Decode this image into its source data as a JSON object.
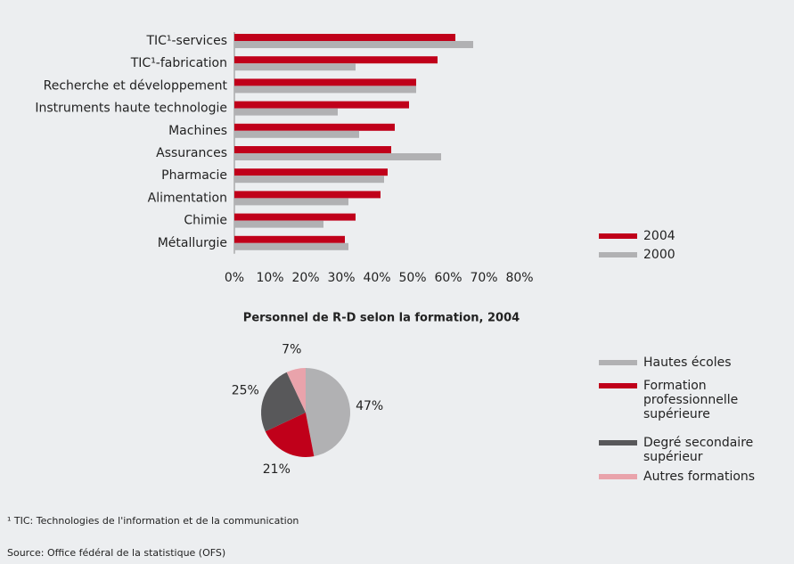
{
  "chart_data": [
    {
      "type": "bar",
      "orientation": "horizontal",
      "categories": [
        "TIC¹-services",
        "TIC¹-fabrication",
        "Recherche et développement",
        "Instruments haute technologie",
        "Machines",
        "Assurances",
        "Pharmacie",
        "Alimentation",
        "Chimie",
        "Métallurgie"
      ],
      "series": [
        {
          "name": "2004",
          "color": "#c0001a",
          "values": [
            62,
            57,
            51,
            49,
            45,
            44,
            43,
            41,
            34,
            31
          ]
        },
        {
          "name": "2000",
          "color": "#b1b1b3",
          "values": [
            67,
            34,
            51,
            29,
            35,
            58,
            42,
            32,
            25,
            32
          ]
        }
      ],
      "xlim": [
        0,
        80
      ],
      "xticks": [
        {
          "value": 0,
          "label": "0%"
        },
        {
          "value": 10,
          "label": "10%"
        },
        {
          "value": 20,
          "label": "20%"
        },
        {
          "value": 30,
          "label": "30%"
        },
        {
          "value": 40,
          "label": "40%"
        },
        {
          "value": 50,
          "label": "50%"
        },
        {
          "value": 60,
          "label": "60%"
        },
        {
          "value": 70,
          "label": "70%"
        },
        {
          "value": 80,
          "label": "80%"
        }
      ],
      "legend": "bottom-right"
    },
    {
      "type": "pie",
      "title": "Personnel de R-D selon la formation, 2004",
      "categories": [
        "Hautes écoles",
        "Formation professionnelle supérieure",
        "Degré secondaire supérieur",
        "Autres formations"
      ],
      "colors": [
        "#b1b1b3",
        "#c0001a",
        "#58585a",
        "#e9a3ab"
      ],
      "values": [
        47,
        21,
        25,
        7
      ],
      "value_labels": [
        "47%",
        "21%",
        "25%",
        "7%"
      ],
      "legend": "right"
    },
    {
      "type": "text",
      "footnote": "¹ TIC: Technologies de l'information et de la communication",
      "source": "Source: Office fédéral de la statistique (OFS)"
    }
  ]
}
